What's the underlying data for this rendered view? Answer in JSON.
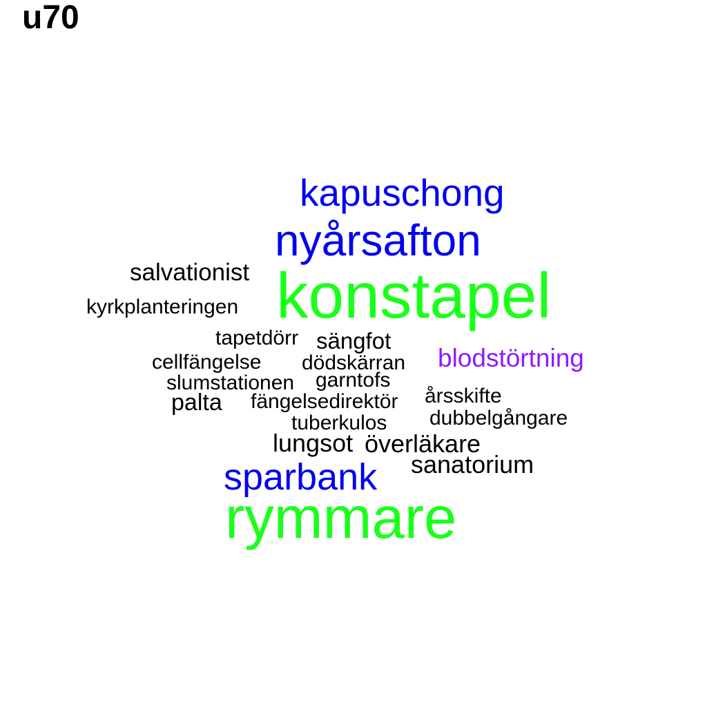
{
  "title": "u70",
  "colors": {
    "background": "#ffffff",
    "green": "#1aff1a",
    "blue": "#0000ee",
    "purple": "#8c1aff",
    "black": "#000000"
  },
  "words": [
    {
      "text": "konstapel",
      "color": "green"
    },
    {
      "text": "rymmare",
      "color": "green"
    },
    {
      "text": "nyårsafton",
      "color": "blue"
    },
    {
      "text": "kapuschong",
      "color": "blue"
    },
    {
      "text": "sparbank",
      "color": "blue"
    },
    {
      "text": "blodstörtning",
      "color": "purple"
    },
    {
      "text": "salvationist",
      "color": "black"
    },
    {
      "text": "kyrkplanteringen",
      "color": "black"
    },
    {
      "text": "tapetdörr",
      "color": "black"
    },
    {
      "text": "sängfot",
      "color": "black"
    },
    {
      "text": "cellfängelse",
      "color": "black"
    },
    {
      "text": "dödskärran",
      "color": "black"
    },
    {
      "text": "slumstationen",
      "color": "black"
    },
    {
      "text": "garntofs",
      "color": "black"
    },
    {
      "text": "palta",
      "color": "black"
    },
    {
      "text": "fängelsedirektör",
      "color": "black"
    },
    {
      "text": "årsskifte",
      "color": "black"
    },
    {
      "text": "dubbelgångare",
      "color": "black"
    },
    {
      "text": "tuberkulos",
      "color": "black"
    },
    {
      "text": "lungsot",
      "color": "black"
    },
    {
      "text": "överläkare",
      "color": "black"
    },
    {
      "text": "sanatorium",
      "color": "black"
    }
  ]
}
